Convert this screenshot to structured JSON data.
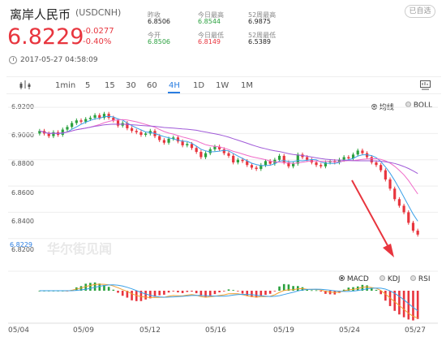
{
  "header": {
    "title": "离岸人民币",
    "code": "(USDCNH)",
    "subscribe_label": "已自选",
    "price": "6.8229",
    "change": "-0.0277",
    "change_pct": "-0.40%",
    "timestamp": "2017-05-27 04:58:09"
  },
  "stats": [
    {
      "label": "昨收",
      "value": "6.8506",
      "color": "dark"
    },
    {
      "label": "今日最高",
      "value": "6.8544",
      "color": "green"
    },
    {
      "label": "52周最高",
      "value": "6.9875",
      "color": "dark"
    },
    {
      "label": "今开",
      "value": "6.8506",
      "color": "green"
    },
    {
      "label": "今日最低",
      "value": "6.8149",
      "color": "red"
    },
    {
      "label": "52周最低",
      "value": "6.5389",
      "color": "dark"
    }
  ],
  "tabs": [
    {
      "label": "1min"
    },
    {
      "label": "5"
    },
    {
      "label": "15"
    },
    {
      "label": "30"
    },
    {
      "label": "60"
    },
    {
      "label": "4H",
      "active": true
    },
    {
      "label": "1D"
    },
    {
      "label": "1W"
    },
    {
      "label": "1M"
    }
  ],
  "main_options": [
    {
      "label": "均线",
      "selected": true
    },
    {
      "label": "BOLL",
      "selected": false
    }
  ],
  "indicator_options": [
    {
      "label": "MACD",
      "selected": true
    },
    {
      "label": "KDJ",
      "selected": false
    },
    {
      "label": "RSI",
      "selected": false
    }
  ],
  "watermark": "华尔街见闻",
  "current_price_tag": "6.8229",
  "colors": {
    "up": "#e8353e",
    "down": "#2ba13f",
    "accent": "#2a7de1",
    "ma_blue": "#3aa0e8",
    "ma_pink": "#f06ac8",
    "ma_purple": "#a05ad8",
    "arrow": "#e8353e"
  },
  "chart_data": {
    "type": "candlestick",
    "ylim": [
      6.805,
      6.925
    ],
    "y_ticks": [
      "6.9200",
      "6.9000",
      "6.8800",
      "6.8600",
      "6.8400",
      "6.8200"
    ],
    "y_tick_values": [
      6.92,
      6.9,
      6.88,
      6.86,
      6.84,
      6.82
    ],
    "x_ticks": [
      "05/04",
      "05/09",
      "05/12",
      "05/16",
      "05/19",
      "05/24",
      "05/27"
    ],
    "close": [
      6.902,
      6.9,
      6.898,
      6.901,
      6.899,
      6.903,
      6.905,
      6.908,
      6.91,
      6.909,
      6.911,
      6.912,
      6.914,
      6.912,
      6.915,
      6.912,
      6.91,
      6.906,
      6.908,
      6.904,
      6.902,
      6.901,
      6.899,
      6.9,
      6.902,
      6.898,
      6.895,
      6.893,
      6.896,
      6.897,
      6.894,
      6.891,
      6.892,
      6.889,
      6.886,
      6.882,
      6.885,
      6.888,
      6.89,
      6.888,
      6.885,
      6.883,
      6.878,
      6.88,
      6.879,
      6.876,
      6.874,
      6.873,
      6.876,
      6.879,
      6.877,
      6.88,
      6.883,
      6.878,
      6.875,
      6.877,
      6.884,
      6.882,
      6.88,
      6.878,
      6.876,
      6.875,
      6.878,
      6.879,
      6.878,
      6.88,
      6.882,
      6.881,
      6.884,
      6.887,
      6.885,
      6.882,
      6.878,
      6.876,
      6.872,
      6.865,
      6.858,
      6.85,
      6.845,
      6.84,
      6.832,
      6.826,
      6.823
    ]
  }
}
